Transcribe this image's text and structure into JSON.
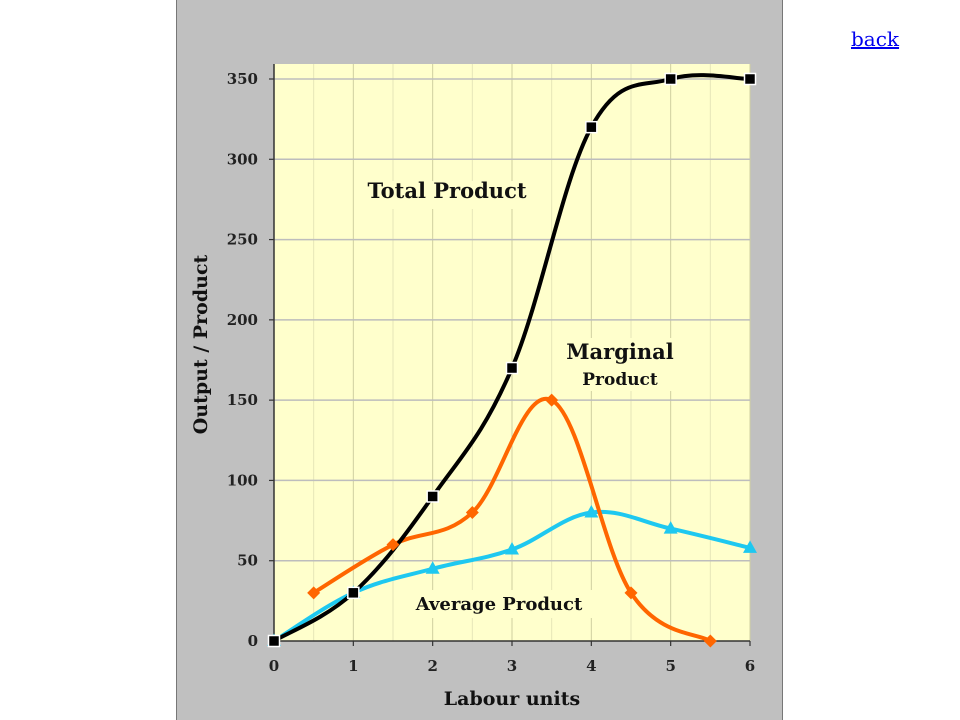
{
  "nav": {
    "back_label": "back"
  },
  "chart_data": {
    "type": "line",
    "title": "",
    "xlabel": "Labour units",
    "ylabel": "Output / Product",
    "xlim": [
      0,
      6
    ],
    "ylim": [
      0,
      350
    ],
    "x_ticks": [
      "0",
      "1",
      "2",
      "3",
      "4",
      "5",
      "6"
    ],
    "y_ticks": [
      "0",
      "50",
      "100",
      "150",
      "200",
      "250",
      "300",
      "350"
    ],
    "grid": true,
    "legend": "none",
    "plot_background": "#ffffcc",
    "series": [
      {
        "name": "Total Product",
        "color": "#000000",
        "marker": "square",
        "points": [
          [
            0,
            0
          ],
          [
            1,
            30
          ],
          [
            2,
            90
          ],
          [
            3,
            170
          ],
          [
            4,
            320
          ],
          [
            5,
            350
          ],
          [
            6,
            350
          ]
        ]
      },
      {
        "name": "Marginal Product",
        "color": "#ff6600",
        "marker": "diamond",
        "points": [
          [
            0.5,
            30
          ],
          [
            1.5,
            60
          ],
          [
            2.5,
            80
          ],
          [
            3.5,
            150
          ],
          [
            4.5,
            30
          ],
          [
            5.5,
            0
          ]
        ]
      },
      {
        "name": "Average Product",
        "color": "#1ec8f0",
        "marker": "triangle",
        "points": [
          [
            0,
            0
          ],
          [
            1,
            30
          ],
          [
            2,
            45
          ],
          [
            3,
            57
          ],
          [
            4,
            80
          ],
          [
            5,
            70
          ],
          [
            6,
            58
          ]
        ]
      }
    ],
    "annotations": [
      {
        "text": "Total Product"
      },
      {
        "text": "Marginal"
      },
      {
        "text": "Product"
      },
      {
        "text": "Average Product"
      }
    ]
  }
}
